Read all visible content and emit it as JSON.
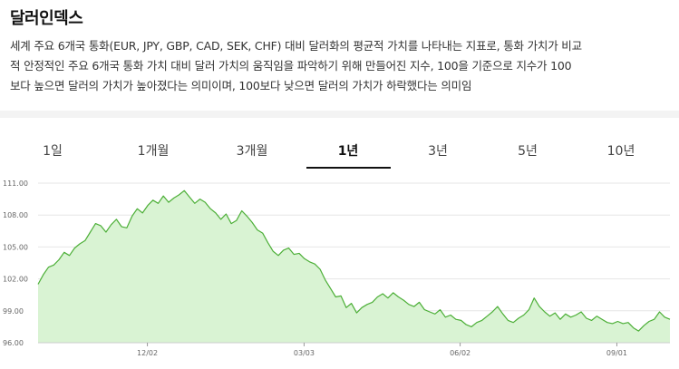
{
  "header": {
    "title": "달러인덱스"
  },
  "description": {
    "line1": "세계 주요 6개국 통화(EUR, JPY, GBP, CAD, SEK, CHF) 대비 달러화의 평균적 가치를 나타내는 지표로, 통화 가치가 비교",
    "line2": "적 안정적인 주요 6개국 통화 가치 대비 달러 가치의 움직임을 파악하기 위해 만들어진 지수, 100을 기준으로 지수가 100",
    "line3": "보다 높으면 달러의 가치가 높아졌다는 의미이며, 100보다 낮으면 달러의 가치가 하락했다는 의미임"
  },
  "tabs": [
    {
      "label": "1일",
      "active": false
    },
    {
      "label": "1개월",
      "active": false
    },
    {
      "label": "3개월",
      "active": false
    },
    {
      "label": "1년",
      "active": true
    },
    {
      "label": "3년",
      "active": false
    },
    {
      "label": "5년",
      "active": false
    },
    {
      "label": "10년",
      "active": false
    }
  ],
  "colors": {
    "line": "#4caf37",
    "fill": "#d9f3d3",
    "grid": "#e6e6e6"
  },
  "chart_data": {
    "type": "area",
    "y_ticks": [
      "111.00",
      "108.00",
      "105.00",
      "102.00",
      "99.00",
      "96.00"
    ],
    "ylim": [
      96,
      111
    ],
    "x_ticks": [
      {
        "label": "12/02",
        "pos": 0.173
      },
      {
        "label": "03/03",
        "pos": 0.421
      },
      {
        "label": "06/02",
        "pos": 0.668
      },
      {
        "label": "09/01",
        "pos": 0.916
      }
    ],
    "values": [
      101.5,
      102.4,
      103.1,
      103.3,
      103.8,
      104.5,
      104.2,
      104.9,
      105.3,
      105.6,
      106.4,
      107.2,
      107.0,
      106.4,
      107.1,
      107.6,
      106.9,
      106.8,
      107.9,
      108.6,
      108.2,
      108.9,
      109.4,
      109.1,
      109.8,
      109.2,
      109.6,
      109.9,
      110.3,
      109.7,
      109.1,
      109.5,
      109.2,
      108.6,
      108.2,
      107.6,
      108.1,
      107.2,
      107.5,
      108.4,
      107.9,
      107.3,
      106.6,
      106.3,
      105.4,
      104.6,
      104.2,
      104.7,
      104.9,
      104.3,
      104.4,
      103.9,
      103.6,
      103.4,
      102.9,
      101.9,
      101.1,
      100.3,
      100.4,
      99.3,
      99.7,
      98.8,
      99.3,
      99.6,
      99.8,
      100.3,
      100.6,
      100.2,
      100.7,
      100.3,
      100.0,
      99.6,
      99.4,
      99.8,
      99.1,
      98.9,
      98.7,
      99.1,
      98.4,
      98.6,
      98.2,
      98.1,
      97.7,
      97.5,
      97.9,
      98.1,
      98.5,
      98.9,
      99.4,
      98.7,
      98.1,
      97.9,
      98.3,
      98.6,
      99.1,
      100.2,
      99.4,
      98.9,
      98.5,
      98.8,
      98.2,
      98.7,
      98.4,
      98.6,
      98.9,
      98.3,
      98.1,
      98.5,
      98.2,
      97.9,
      97.8,
      98.0,
      97.8,
      97.9,
      97.4,
      97.1,
      97.6,
      98.0,
      98.2,
      98.9,
      98.4,
      98.2
    ]
  }
}
